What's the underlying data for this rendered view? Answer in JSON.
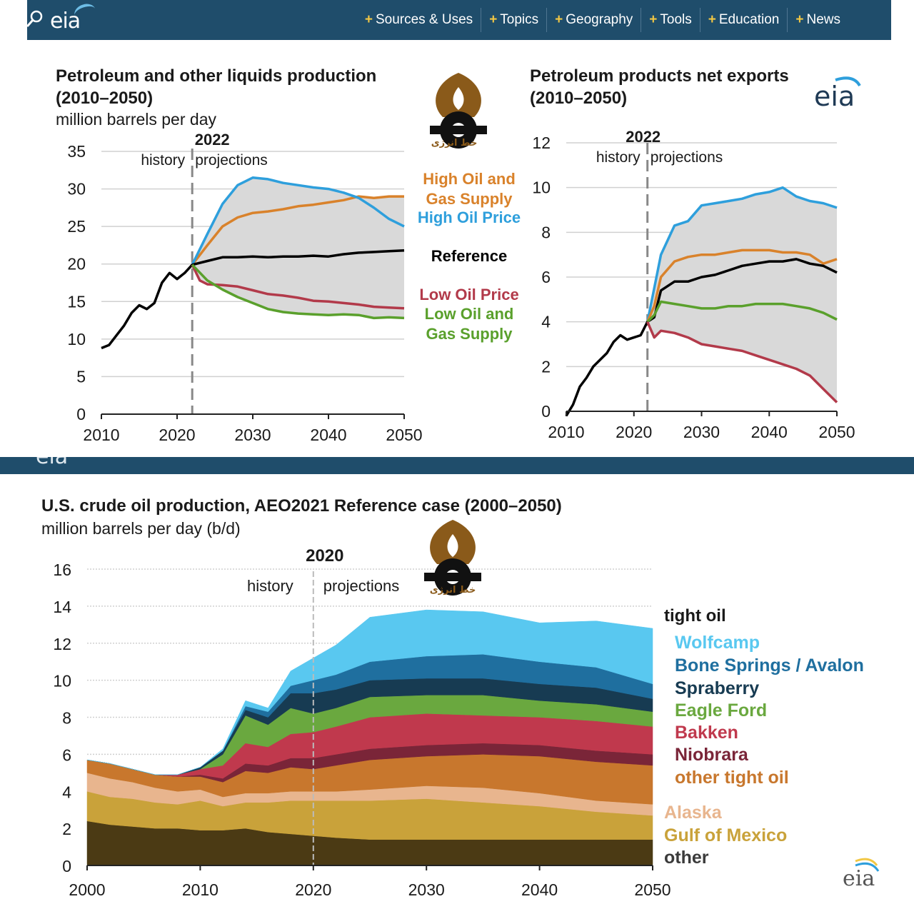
{
  "nav": {
    "logo": "eia",
    "items": [
      "Sources & Uses",
      "Topics",
      "Geography",
      "Tools",
      "Education",
      "News"
    ]
  },
  "colors": {
    "nav_bg": "#1f4d6b",
    "nav_plus": "#f2c744",
    "high_oil_gas": "#d9822b",
    "high_price": "#2e9fdc",
    "reference": "#000000",
    "low_price": "#b23a4a",
    "low_oil_gas": "#5aa02c",
    "band": "#d9d9d9"
  },
  "watermark": {
    "text": "خط انرژی"
  },
  "chart_data": [
    {
      "type": "line",
      "title": "Petroleum and other liquids production",
      "subtitle": "(2010–2050)",
      "ylabel": "million barrels per day",
      "xlim": [
        2010,
        2050
      ],
      "ylim": [
        0,
        35
      ],
      "xticks": [
        2010,
        2020,
        2030,
        2040,
        2050
      ],
      "yticks": [
        0,
        5,
        10,
        15,
        20,
        25,
        30,
        35
      ],
      "divider_year": 2022,
      "divider_label": "2022",
      "history_label": "history",
      "projection_label": "projections",
      "band": "shaded range between high and low cases",
      "series": [
        {
          "name": "High Oil and Gas Supply",
          "color_key": "high_oil_gas",
          "x": [
            2022,
            2024,
            2026,
            2028,
            2030,
            2032,
            2034,
            2036,
            2038,
            2040,
            2042,
            2044,
            2046,
            2048,
            2050
          ],
          "y": [
            19.9,
            22.5,
            25,
            26.2,
            26.8,
            27,
            27.3,
            27.7,
            27.9,
            28.2,
            28.5,
            29,
            28.8,
            29,
            29
          ]
        },
        {
          "name": "High Oil Price",
          "color_key": "high_price",
          "x": [
            2022,
            2024,
            2026,
            2028,
            2030,
            2032,
            2034,
            2036,
            2038,
            2040,
            2042,
            2044,
            2046,
            2048,
            2050
          ],
          "y": [
            19.9,
            24,
            28,
            30.5,
            31.5,
            31.3,
            30.8,
            30.5,
            30.2,
            30,
            29.5,
            28.8,
            27.5,
            26,
            25
          ]
        },
        {
          "name": "Reference",
          "color_key": "reference",
          "x": [
            2010,
            2011,
            2012,
            2013,
            2014,
            2015,
            2016,
            2017,
            2018,
            2019,
            2020,
            2021,
            2022,
            2024,
            2026,
            2028,
            2030,
            2032,
            2034,
            2036,
            2038,
            2040,
            2042,
            2044,
            2046,
            2048,
            2050
          ],
          "y": [
            8.8,
            9.2,
            10.5,
            11.8,
            13.5,
            14.5,
            14,
            14.8,
            17.5,
            18.8,
            18,
            18.8,
            19.9,
            20.4,
            20.9,
            20.9,
            21,
            20.9,
            21,
            21,
            21.1,
            21,
            21.3,
            21.5,
            21.6,
            21.7,
            21.8
          ]
        },
        {
          "name": "Low Oil Price",
          "color_key": "low_price",
          "x": [
            2022,
            2023,
            2024,
            2026,
            2028,
            2030,
            2032,
            2034,
            2036,
            2038,
            2040,
            2042,
            2044,
            2046,
            2048,
            2050
          ],
          "y": [
            19.9,
            17.8,
            17.3,
            17.2,
            17,
            16.5,
            16,
            15.8,
            15.5,
            15.1,
            15,
            14.8,
            14.6,
            14.3,
            14.2,
            14.1
          ]
        },
        {
          "name": "Low Oil and Gas Supply",
          "color_key": "low_oil_gas",
          "x": [
            2022,
            2024,
            2026,
            2028,
            2030,
            2032,
            2034,
            2036,
            2038,
            2040,
            2042,
            2044,
            2046,
            2048,
            2050
          ],
          "y": [
            19.9,
            17.8,
            16.6,
            15.6,
            14.8,
            14,
            13.6,
            13.4,
            13.3,
            13.2,
            13.3,
            13.2,
            12.8,
            12.9,
            12.8
          ]
        }
      ],
      "legend": [
        {
          "text": "High Oil and",
          "color_key": "high_oil_gas"
        },
        {
          "text": "Gas Supply",
          "color_key": "high_oil_gas"
        },
        {
          "text": "High Oil Price",
          "color_key": "high_price"
        },
        {
          "text": "Reference",
          "color_key": "reference"
        },
        {
          "text": "Low Oil Price",
          "color_key": "low_price"
        },
        {
          "text": "Low Oil and",
          "color_key": "low_oil_gas"
        },
        {
          "text": "Gas Supply",
          "color_key": "low_oil_gas"
        }
      ]
    },
    {
      "type": "line",
      "title": "Petroleum products net exports",
      "subtitle": "(2010–2050)",
      "logo": "eia",
      "xlim": [
        2010,
        2050
      ],
      "ylim": [
        0,
        12
      ],
      "xticks": [
        2010,
        2020,
        2030,
        2040,
        2050
      ],
      "yticks": [
        0,
        2,
        4,
        6,
        8,
        10,
        12
      ],
      "divider_year": 2022,
      "divider_label": "2022",
      "history_label": "history",
      "projection_label": "projections",
      "series": [
        {
          "name": "High Oil Price",
          "color_key": "high_price",
          "x": [
            2022,
            2023,
            2024,
            2026,
            2028,
            2030,
            2032,
            2034,
            2036,
            2038,
            2040,
            2042,
            2044,
            2046,
            2048,
            2050
          ],
          "y": [
            4,
            5.5,
            7,
            8.3,
            8.5,
            9.2,
            9.3,
            9.4,
            9.5,
            9.7,
            9.8,
            10,
            9.6,
            9.4,
            9.3,
            9.1
          ]
        },
        {
          "name": "High Oil and Gas Supply",
          "color_key": "high_oil_gas",
          "x": [
            2022,
            2023,
            2024,
            2026,
            2028,
            2030,
            2032,
            2034,
            2036,
            2038,
            2040,
            2042,
            2044,
            2046,
            2048,
            2050
          ],
          "y": [
            4,
            4.7,
            6,
            6.7,
            6.9,
            7,
            7,
            7.1,
            7.2,
            7.2,
            7.2,
            7.1,
            7.1,
            7,
            6.6,
            6.8
          ]
        },
        {
          "name": "Reference",
          "color_key": "reference",
          "x": [
            2010,
            2011,
            2012,
            2013,
            2014,
            2015,
            2016,
            2017,
            2018,
            2019,
            2020,
            2021,
            2022,
            2023,
            2024,
            2026,
            2028,
            2030,
            2032,
            2034,
            2036,
            2038,
            2040,
            2042,
            2044,
            2046,
            2048,
            2050
          ],
          "y": [
            -0.2,
            0.3,
            1.1,
            1.5,
            2,
            2.3,
            2.6,
            3.1,
            3.4,
            3.2,
            3.3,
            3.4,
            4,
            4.2,
            5.4,
            5.8,
            5.8,
            6,
            6.1,
            6.3,
            6.5,
            6.6,
            6.7,
            6.7,
            6.8,
            6.6,
            6.5,
            6.2
          ]
        },
        {
          "name": "Low Oil and Gas Supply",
          "color_key": "low_oil_gas",
          "x": [
            2022,
            2023,
            2024,
            2026,
            2028,
            2030,
            2032,
            2034,
            2036,
            2038,
            2040,
            2042,
            2044,
            2046,
            2048,
            2050
          ],
          "y": [
            4,
            4.3,
            4.9,
            4.8,
            4.7,
            4.6,
            4.6,
            4.7,
            4.7,
            4.8,
            4.8,
            4.8,
            4.7,
            4.6,
            4.4,
            4.1
          ]
        },
        {
          "name": "Low Oil Price",
          "color_key": "low_price",
          "x": [
            2022,
            2023,
            2024,
            2026,
            2028,
            2030,
            2032,
            2034,
            2036,
            2038,
            2040,
            2042,
            2044,
            2046,
            2048,
            2050
          ],
          "y": [
            4,
            3.3,
            3.6,
            3.5,
            3.3,
            3,
            2.9,
            2.8,
            2.7,
            2.5,
            2.3,
            2.1,
            1.9,
            1.6,
            1,
            0.4
          ]
        }
      ]
    },
    {
      "type": "area",
      "title": "U.S. crude oil production, AEO2021 Reference case (2000–2050)",
      "ylabel": "million barrels per day (b/d)",
      "xlim": [
        2000,
        2050
      ],
      "ylim": [
        0,
        16
      ],
      "xticks": [
        2000,
        2010,
        2020,
        2030,
        2040,
        2050
      ],
      "yticks": [
        0,
        2,
        4,
        6,
        8,
        10,
        12,
        14,
        16
      ],
      "divider_year": 2020,
      "divider_label": "2020",
      "history_label": "history",
      "projection_label": "projections",
      "legend_header": "tight oil",
      "logo": "eia",
      "x": [
        2000,
        2002,
        2004,
        2006,
        2008,
        2010,
        2012,
        2014,
        2016,
        2018,
        2020,
        2022,
        2025,
        2030,
        2035,
        2040,
        2045,
        2050
      ],
      "series": [
        {
          "name": "other",
          "color": "#4b3a14",
          "values": [
            2.4,
            2.2,
            2.1,
            2.0,
            2.0,
            1.9,
            1.9,
            2.0,
            1.8,
            1.7,
            1.6,
            1.5,
            1.4,
            1.4,
            1.4,
            1.4,
            1.4,
            1.4
          ]
        },
        {
          "name": "Gulf of Mexico",
          "color": "#c9a23a",
          "values": [
            1.6,
            1.5,
            1.5,
            1.4,
            1.3,
            1.6,
            1.3,
            1.4,
            1.6,
            1.8,
            1.9,
            2.0,
            2.1,
            2.2,
            2.0,
            1.8,
            1.5,
            1.3
          ]
        },
        {
          "name": "Alaska",
          "color": "#e8b58e",
          "values": [
            1.0,
            1.0,
            0.9,
            0.8,
            0.7,
            0.6,
            0.5,
            0.5,
            0.5,
            0.5,
            0.5,
            0.5,
            0.6,
            0.7,
            0.8,
            0.7,
            0.6,
            0.6
          ]
        },
        {
          "name": "other tight oil",
          "color": "#c8772d",
          "values": [
            0.7,
            0.8,
            0.7,
            0.7,
            0.8,
            0.7,
            0.8,
            1.2,
            1.1,
            1.3,
            1.2,
            1.4,
            1.6,
            1.6,
            1.8,
            2.0,
            2.1,
            2.1
          ]
        },
        {
          "name": "Niobrara",
          "color": "#7a2538",
          "values": [
            0,
            0,
            0,
            0,
            0,
            0.1,
            0.2,
            0.4,
            0.4,
            0.5,
            0.6,
            0.6,
            0.6,
            0.6,
            0.6,
            0.6,
            0.6,
            0.6
          ]
        },
        {
          "name": "Bakken",
          "color": "#c0394d",
          "values": [
            0,
            0,
            0,
            0,
            0.1,
            0.3,
            0.7,
            1.1,
            1.0,
            1.3,
            1.4,
            1.5,
            1.7,
            1.7,
            1.5,
            1.5,
            1.6,
            1.5
          ]
        },
        {
          "name": "Eagle Ford",
          "color": "#6aa83f",
          "values": [
            0,
            0,
            0,
            0,
            0,
            0,
            0.6,
            1.5,
            1.2,
            1.4,
            1.0,
            1.0,
            1.1,
            1.0,
            1.1,
            0.9,
            0.9,
            0.8
          ]
        },
        {
          "name": "Spraberry",
          "color": "#173b52",
          "values": [
            0,
            0,
            0,
            0,
            0,
            0.1,
            0.2,
            0.3,
            0.4,
            0.8,
            1.1,
            1.0,
            0.9,
            0.9,
            0.9,
            0.9,
            0.9,
            0.7
          ]
        },
        {
          "name": "Bone Springs / Avalon",
          "color": "#1f6f9f",
          "values": [
            0,
            0,
            0,
            0,
            0,
            0,
            0,
            0.2,
            0.3,
            0.4,
            0.7,
            0.8,
            1.0,
            1.2,
            1.3,
            1.2,
            1.1,
            0.8
          ]
        },
        {
          "name": "Wolfcamp",
          "color": "#59c8f0",
          "values": [
            0,
            0,
            0,
            0,
            0,
            0,
            0.1,
            0.3,
            0.2,
            0.8,
            1.2,
            1.6,
            2.4,
            2.5,
            2.3,
            2.1,
            2.5,
            3.0
          ]
        }
      ],
      "legend": [
        {
          "name": "Wolfcamp",
          "color": "#59c8f0"
        },
        {
          "name": "Bone Springs / Avalon",
          "color": "#1f6f9f"
        },
        {
          "name": "Spraberry",
          "color": "#173b52"
        },
        {
          "name": "Eagle Ford",
          "color": "#6aa83f"
        },
        {
          "name": "Bakken",
          "color": "#c0394d"
        },
        {
          "name": "Niobrara",
          "color": "#7a2538"
        },
        {
          "name": "other tight oil",
          "color": "#c8772d"
        },
        {
          "name": "Alaska",
          "color": "#e8b58e"
        },
        {
          "name": "Gulf of Mexico",
          "color": "#c9a23a"
        },
        {
          "name": "other",
          "color": "#4b3a14"
        }
      ]
    }
  ]
}
